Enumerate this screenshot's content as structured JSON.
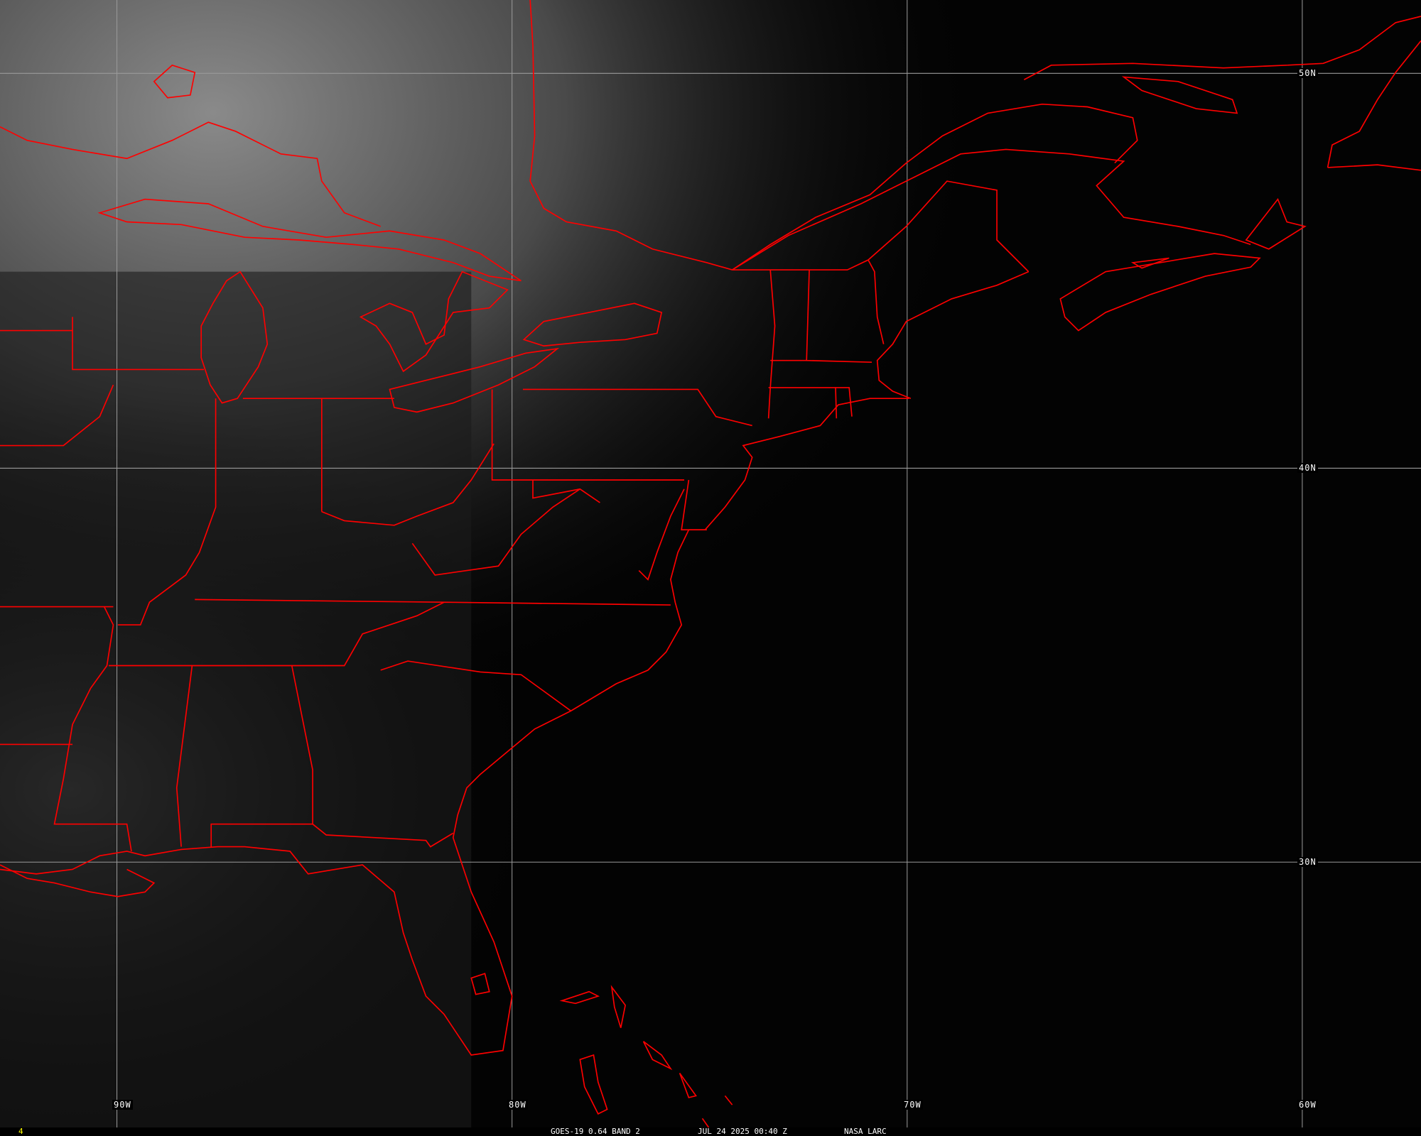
{
  "map": {
    "grid_color": "#9a9a9a",
    "border_color": "#ff0000",
    "longitude_labels": [
      "90W",
      "80W",
      "70W",
      "60W"
    ],
    "latitude_labels": [
      "50N",
      "40N",
      "30N"
    ]
  },
  "footer": {
    "frame_number": "4",
    "frame_color": "#ffff00",
    "product": "GOES-19 0.64 BAND 2",
    "datetime": "JUL 24 2025 00:40 Z",
    "source": "NASA LARC"
  }
}
